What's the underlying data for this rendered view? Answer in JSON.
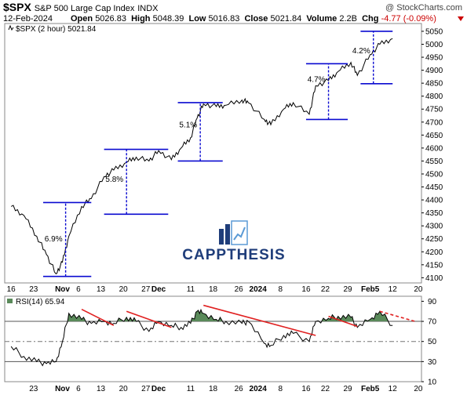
{
  "header": {
    "symbol": "$SPX",
    "name": "S&P 500 Large Cap Index",
    "exchange": "INDX",
    "date": "12-Feb-2024",
    "open_label": "Open",
    "open": "5026.83",
    "high_label": "High",
    "high": "5048.39",
    "low_label": "Low",
    "low": "5016.83",
    "close_label": "Close",
    "close": "5021.84",
    "volume_label": "Volume",
    "volume": "2.2B",
    "chg_label": "Chg",
    "chg": "-4.77 (-0.09%)",
    "copyright": "@ StockCharts.com"
  },
  "legend": {
    "price": "$SPX (2 hour) 5021.84",
    "rsi": "RSI(14) 65.94"
  },
  "logo": {
    "text": "CAPPTHESIS"
  },
  "colors": {
    "price_line": "#000000",
    "bracket": "#0a0ad0",
    "trend": "#e02020",
    "rsi_fill": "#5a8a5a",
    "logo_blue": "#1f3d7a",
    "logo_light": "#5a9ad5"
  },
  "chart_data": [
    {
      "type": "line",
      "title": "$SPX (2 hour) 5021.84",
      "xlabel": "",
      "ylabel": "",
      "ylim": [
        4080,
        5080
      ],
      "yticks": [
        4100,
        4150,
        4200,
        4250,
        4300,
        4350,
        4400,
        4450,
        4500,
        4550,
        4600,
        4650,
        4700,
        4750,
        4800,
        4850,
        4900,
        4950,
        5000,
        5050
      ],
      "xticks": [
        "16",
        "23",
        "Nov",
        "6",
        "13",
        "20",
        "27",
        "Dec",
        "11",
        "18",
        "26",
        "2024",
        "8",
        "16",
        "22",
        "29",
        "Feb5",
        "12",
        "20"
      ],
      "bold_xticks": [
        "Nov",
        "Dec",
        "2024",
        "Feb5"
      ],
      "x": [
        "Oct 16",
        "Oct 20",
        "Oct 24",
        "Oct 27",
        "Oct 30",
        "Nov 1",
        "Nov 3",
        "Nov 7",
        "Nov 10",
        "Nov 14",
        "Nov 17",
        "Nov 21",
        "Nov 24",
        "Nov 28",
        "Dec 1",
        "Dec 5",
        "Dec 8",
        "Dec 11",
        "Dec 13",
        "Dec 15",
        "Dec 19",
        "Dec 22",
        "Dec 27",
        "Dec 29",
        "Jan 3",
        "Jan 5",
        "Jan 9",
        "Jan 12",
        "Jan 17",
        "Jan 19",
        "Jan 23",
        "Jan 26",
        "Jan 30",
        "Feb 1",
        "Feb 5",
        "Feb 8",
        "Feb 12"
      ],
      "series": [
        {
          "values": [
            4375,
            4340,
            4260,
            4190,
            4115,
            4160,
            4260,
            4375,
            4405,
            4490,
            4515,
            4545,
            4565,
            4550,
            4590,
            4555,
            4600,
            4640,
            4715,
            4770,
            4760,
            4765,
            4785,
            4775,
            4710,
            4690,
            4750,
            4775,
            4730,
            4840,
            4860,
            4895,
            4930,
            4880,
            4960,
            5000,
            5022
          ]
        }
      ],
      "annotations": [
        {
          "label": "6.9%",
          "from": 4105,
          "to": 4390
        },
        {
          "label": "5.8%",
          "from": 4345,
          "to": 4595
        },
        {
          "label": "5.1%",
          "from": 4550,
          "to": 4775
        },
        {
          "label": "4.7%",
          "from": 4710,
          "to": 4925
        },
        {
          "label": "4.2%",
          "from": 4848,
          "to": 5050
        }
      ]
    },
    {
      "type": "line",
      "title": "RSI(14) 65.94",
      "ylim": [
        10,
        95
      ],
      "yticks": [
        10,
        30,
        50,
        70,
        90
      ],
      "xticks": [
        "23",
        "Nov",
        "6",
        "13",
        "20",
        "27",
        "Dec",
        "11",
        "18",
        "26",
        "2024",
        "8",
        "16",
        "22",
        "29",
        "Feb5",
        "12",
        "20"
      ],
      "reference_lines": [
        30,
        50,
        70
      ],
      "series": [
        {
          "values": [
            45,
            35,
            30,
            28,
            30,
            50,
            78,
            72,
            68,
            70,
            68,
            74,
            70,
            60,
            70,
            66,
            64,
            68,
            80,
            78,
            72,
            70,
            68,
            70,
            48,
            46,
            56,
            58,
            50,
            70,
            73,
            75,
            74,
            64,
            72,
            80,
            66
          ]
        }
      ],
      "trend_lines": [
        {
          "from": "Nov 7",
          "from_value": 82,
          "to": "Nov 17",
          "to_value": 66
        },
        {
          "from": "Nov 21",
          "from_value": 80,
          "to": "Dec 5",
          "to_value": 64
        },
        {
          "from": "Dec 15",
          "from_value": 86,
          "to": "Jan 19",
          "to_value": 56
        },
        {
          "from": "Jan 23",
          "from_value": 75,
          "to": "Feb 1",
          "to_value": 65
        },
        {
          "from": "Feb 8",
          "from_value": 80,
          "to": "Feb 19",
          "to_value": 70,
          "dashed": true
        }
      ]
    }
  ]
}
